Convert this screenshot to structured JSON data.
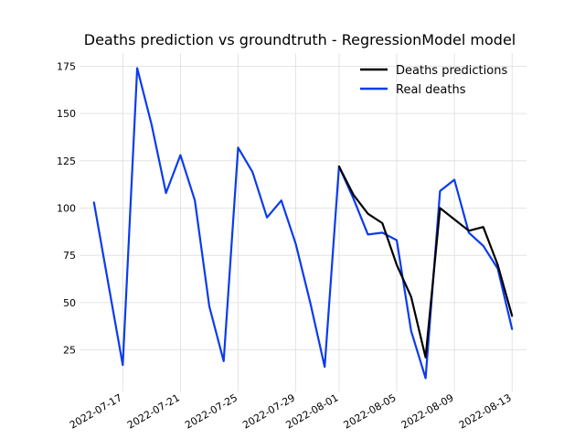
{
  "chart_data": {
    "type": "line",
    "title": "Deaths prediction vs groundtruth - RegressionModel model",
    "xlabel": "",
    "ylabel": "",
    "x_ticks": [
      "2022-07-17",
      "2022-07-21",
      "2022-07-25",
      "2022-07-29",
      "2022-08-01",
      "2022-08-05",
      "2022-08-09",
      "2022-08-13"
    ],
    "y_ticks": [
      25,
      50,
      75,
      100,
      125,
      150,
      175
    ],
    "xlim": [
      "2022-07-14",
      "2022-08-14"
    ],
    "ylim": [
      3,
      182
    ],
    "grid": true,
    "legend_position": "top-right",
    "series": [
      {
        "name": "Deaths predictions",
        "color": "#000000",
        "points": [
          [
            "2022-08-01",
            122
          ],
          [
            "2022-08-02",
            107
          ],
          [
            "2022-08-03",
            97
          ],
          [
            "2022-08-04",
            92
          ],
          [
            "2022-08-05",
            70
          ],
          [
            "2022-08-06",
            53
          ],
          [
            "2022-08-07",
            21
          ],
          [
            "2022-08-08",
            100
          ],
          [
            "2022-08-09",
            94
          ],
          [
            "2022-08-10",
            88
          ],
          [
            "2022-08-11",
            90
          ],
          [
            "2022-08-12",
            70
          ],
          [
            "2022-08-13",
            43
          ]
        ]
      },
      {
        "name": "Real deaths",
        "color": "#0b3bef",
        "points": [
          [
            "2022-07-15",
            103
          ],
          [
            "2022-07-16",
            60
          ],
          [
            "2022-07-17",
            17
          ],
          [
            "2022-07-18",
            174
          ],
          [
            "2022-07-19",
            144
          ],
          [
            "2022-07-20",
            108
          ],
          [
            "2022-07-21",
            128
          ],
          [
            "2022-07-22",
            104
          ],
          [
            "2022-07-23",
            48
          ],
          [
            "2022-07-24",
            19
          ],
          [
            "2022-07-25",
            132
          ],
          [
            "2022-07-26",
            119
          ],
          [
            "2022-07-27",
            95
          ],
          [
            "2022-07-28",
            104
          ],
          [
            "2022-07-29",
            81
          ],
          [
            "2022-07-30",
            50
          ],
          [
            "2022-07-31",
            16
          ],
          [
            "2022-08-01",
            122
          ],
          [
            "2022-08-02",
            105
          ],
          [
            "2022-08-03",
            86
          ],
          [
            "2022-08-04",
            87
          ],
          [
            "2022-08-05",
            83
          ],
          [
            "2022-08-06",
            35
          ],
          [
            "2022-08-07",
            10
          ],
          [
            "2022-08-08",
            109
          ],
          [
            "2022-08-09",
            115
          ],
          [
            "2022-08-10",
            87
          ],
          [
            "2022-08-11",
            80
          ],
          [
            "2022-08-12",
            68
          ],
          [
            "2022-08-13",
            36
          ]
        ]
      }
    ]
  }
}
